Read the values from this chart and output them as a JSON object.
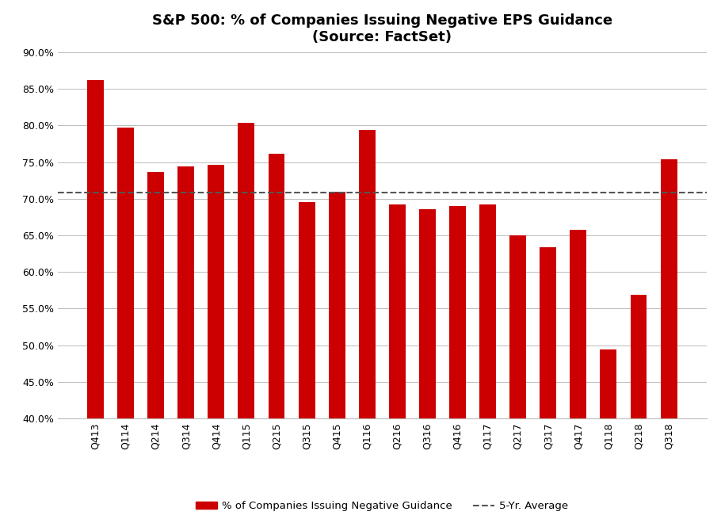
{
  "categories": [
    "Q413",
    "Q114",
    "Q214",
    "Q314",
    "Q414",
    "Q115",
    "Q215",
    "Q315",
    "Q415",
    "Q116",
    "Q216",
    "Q316",
    "Q416",
    "Q117",
    "Q217",
    "Q317",
    "Q417",
    "Q118",
    "Q218",
    "Q318"
  ],
  "values": [
    0.862,
    0.797,
    0.737,
    0.744,
    0.746,
    0.804,
    0.762,
    0.695,
    0.71,
    0.794,
    0.692,
    0.686,
    0.69,
    0.692,
    0.65,
    0.634,
    0.658,
    0.494,
    0.569,
    0.754
  ],
  "average": 0.708,
  "bar_color": "#CC0000",
  "avg_color": "#555555",
  "title_line1": "S&P 500: % of Companies Issuing Negative EPS Guidance",
  "title_line2": "(Source: FactSet)",
  "ylim_min": 0.4,
  "ylim_max": 0.9,
  "yticks": [
    0.4,
    0.45,
    0.5,
    0.55,
    0.6,
    0.65,
    0.7,
    0.75,
    0.8,
    0.85,
    0.9
  ],
  "legend_bar_label": "% of Companies Issuing Negative Guidance",
  "legend_avg_label": "5-Yr. Average",
  "background_color": "#ffffff",
  "grid_color": "#bbbbbb",
  "bar_bottom": 0.4,
  "bar_width": 0.55,
  "title_fontsize": 13,
  "tick_fontsize": 9
}
